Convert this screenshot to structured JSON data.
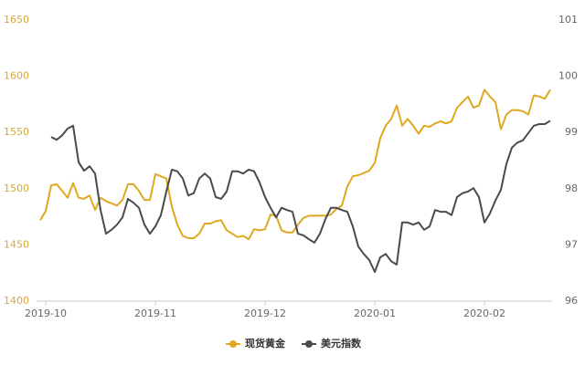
{
  "chart_data": {
    "type": "line",
    "categories": [
      null,
      "2019-10",
      null,
      null,
      null,
      null,
      null,
      null,
      null,
      null,
      null,
      null,
      null,
      null,
      null,
      null,
      null,
      null,
      null,
      null,
      null,
      "2019-11",
      null,
      null,
      null,
      null,
      null,
      null,
      null,
      null,
      null,
      null,
      null,
      null,
      null,
      null,
      null,
      null,
      null,
      null,
      null,
      "2019-12",
      null,
      null,
      null,
      null,
      null,
      null,
      null,
      null,
      null,
      null,
      null,
      null,
      null,
      null,
      null,
      null,
      null,
      null,
      null,
      "2020-01",
      null,
      null,
      null,
      null,
      null,
      null,
      null,
      null,
      null,
      null,
      null,
      null,
      null,
      null,
      null,
      null,
      null,
      null,
      null,
      "2020-02",
      null,
      null,
      null,
      null,
      null,
      null,
      null,
      null,
      null,
      null,
      null,
      null
    ],
    "series": [
      {
        "name": "现货黄金",
        "color": "#e0a820",
        "axis": "y",
        "values": [
          1472,
          1480,
          1503,
          1504,
          1498,
          1492,
          1505,
          1492,
          1491,
          1494,
          1481,
          1492,
          1489,
          1487,
          1485,
          1490,
          1504,
          1504,
          1498,
          1490,
          1490,
          1513,
          1511,
          1509,
          1484,
          1468,
          1458,
          1456,
          1456,
          1460,
          1469,
          1469,
          1471,
          1472,
          1463,
          1460,
          1457,
          1458,
          1455,
          1464,
          1463,
          1464,
          1477,
          1476,
          1463,
          1461,
          1461,
          1468,
          1474,
          1476,
          1476,
          1476,
          1476,
          1477,
          1482,
          1485,
          1502,
          1511,
          1512,
          1514,
          1516,
          1523,
          1545,
          1556,
          1562,
          1574,
          1556,
          1562,
          1556,
          1549,
          1556,
          1555,
          1558,
          1560,
          1558,
          1560,
          1572,
          1577,
          1582,
          1572,
          1574,
          1588,
          1582,
          1577,
          1553,
          1566,
          1570,
          1570,
          1569,
          1566,
          1583,
          1582,
          1580,
          1588
        ]
      },
      {
        "name": "美元指数",
        "color": "#4a4a4a",
        "axis": "y2",
        "values": [
          null,
          null,
          98.92,
          98.87,
          98.95,
          99.07,
          99.12,
          98.47,
          98.32,
          98.4,
          98.27,
          97.62,
          97.2,
          97.27,
          97.36,
          97.49,
          97.82,
          97.75,
          97.66,
          97.36,
          97.2,
          97.33,
          97.53,
          97.95,
          98.34,
          98.31,
          98.18,
          97.88,
          97.92,
          98.18,
          98.27,
          98.18,
          97.85,
          97.82,
          97.95,
          98.31,
          98.31,
          98.27,
          98.34,
          98.31,
          98.11,
          97.85,
          97.66,
          97.49,
          97.66,
          97.62,
          97.59,
          97.2,
          97.17,
          97.1,
          97.04,
          97.2,
          97.46,
          97.66,
          97.66,
          97.62,
          97.59,
          97.33,
          96.97,
          96.84,
          96.73,
          96.52,
          96.78,
          96.84,
          96.71,
          96.65,
          97.4,
          97.4,
          97.36,
          97.4,
          97.27,
          97.33,
          97.62,
          97.59,
          97.59,
          97.53,
          97.85,
          97.92,
          97.95,
          98.01,
          97.85,
          97.4,
          97.56,
          97.79,
          97.98,
          98.44,
          98.73,
          98.82,
          98.86,
          98.99,
          99.12,
          99.15,
          99.15,
          99.21
        ]
      }
    ],
    "ylim": [
      1400,
      1650
    ],
    "yticks": [
      1400,
      1450,
      1500,
      1550,
      1600,
      1650
    ],
    "y2lim": [
      96,
      101
    ],
    "y2ticks": [
      96,
      97,
      98,
      99,
      100,
      101
    ],
    "grid": false,
    "legend": "bottom"
  }
}
